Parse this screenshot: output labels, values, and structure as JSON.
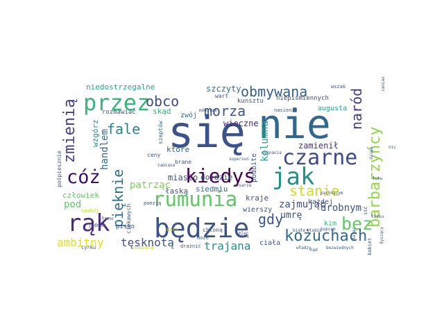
{
  "words": [
    {
      "t": "się",
      "c": "#3b528b"
    },
    {
      "t": "nie",
      "c": "#31688e"
    },
    {
      "t": "będzie",
      "c": "#3b528b"
    },
    {
      "t": "kiedyś",
      "c": "#440154"
    },
    {
      "t": "rumunia",
      "c": "#5ec962"
    },
    {
      "t": "przez",
      "c": "#35b779"
    },
    {
      "t": "czarne",
      "c": "#3e4a89"
    },
    {
      "t": "jak",
      "c": "#21918c"
    },
    {
      "t": "rąk",
      "c": "#472d7b"
    },
    {
      "t": "bez",
      "c": "#5ec962"
    },
    {
      "t": "cóż",
      "c": "#3b0f70"
    },
    {
      "t": "kożuchach",
      "c": "#31688e"
    },
    {
      "t": "obmywana",
      "c": "#355f8d"
    },
    {
      "t": "barbarzyńcy",
      "c": "#8fd744"
    },
    {
      "t": "naród",
      "c": "#443983"
    },
    {
      "t": "zmienią",
      "c": "#433e85"
    },
    {
      "t": "morza",
      "c": "#3b528b"
    },
    {
      "t": "obco",
      "c": "#3e4989"
    },
    {
      "t": "fale",
      "c": "#26828e"
    },
    {
      "t": "pięknie",
      "c": "#2c728e"
    },
    {
      "t": "stanie",
      "c": "#c8e020"
    },
    {
      "t": "gdy",
      "c": "#3b528b"
    },
    {
      "t": "ambitny",
      "c": "#dde318"
    },
    {
      "t": "tęsknotą",
      "c": "#3b528b"
    },
    {
      "t": "trajana",
      "c": "#21918c"
    },
    {
      "t": "handlem",
      "c": "#31688e"
    },
    {
      "t": "kolumna",
      "c": "#21a585"
    },
    {
      "t": "drobnym",
      "c": "#3b528b"
    },
    {
      "t": "patrząc",
      "c": "#7ad151"
    },
    {
      "t": "pod",
      "c": "#5ec962"
    },
    {
      "t": "zajmując",
      "c": "#3e4a89"
    },
    {
      "t": "umrę",
      "c": "#3b528b"
    },
    {
      "t": "zamienił",
      "c": "#472d7b"
    },
    {
      "t": "szczyty",
      "c": "#2e6e8e"
    },
    {
      "t": "niedostrzegalne",
      "c": "#22a884"
    },
    {
      "t": "wieczne",
      "c": "#482878"
    },
    {
      "t": "skąd",
      "c": "#35b779"
    },
    {
      "t": "rozmawiać",
      "c": "#3b528b"
    },
    {
      "t": "kunsztu",
      "c": "#3b528b"
    },
    {
      "t": "zwój",
      "c": "#31688e"
    },
    {
      "t": "wzgórz",
      "c": "#21918c"
    },
    {
      "t": "które",
      "c": "#31688e"
    },
    {
      "t": "miasto",
      "c": "#3b528b"
    },
    {
      "t": "dojdzie",
      "c": "#3b528b"
    },
    {
      "t": "podbite",
      "c": "#3b528b"
    },
    {
      "t": "siedmiu",
      "c": "#31688e"
    },
    {
      "t": "łaską",
      "c": "#3b528b"
    },
    {
      "t": "człowiek",
      "c": "#5ec962"
    },
    {
      "t": "kraje",
      "c": "#3b528b"
    },
    {
      "t": "wierszy",
      "c": "#3b528b"
    },
    {
      "t": "każdej",
      "c": "#3b528b"
    },
    {
      "t": "kim",
      "c": "#35b779"
    },
    {
      "t": "augusta",
      "c": "#20a386"
    },
    {
      "t": "ciała",
      "c": "#3b528b"
    },
    {
      "t": "ciekawych",
      "c": "#3b528b"
    },
    {
      "t": "szeptów",
      "c": "#31688e"
    },
    {
      "t": "ceny",
      "c": "#3b528b"
    },
    {
      "t": "brane",
      "c": "#3b528b"
    },
    {
      "t": "pośpiesznie",
      "c": "#3b528b"
    },
    {
      "t": "pismo",
      "c": "#3b528b"
    },
    {
      "t": "jednak",
      "c": "#3b528b"
    },
    {
      "t": "tłumu",
      "c": "#3b528b"
    },
    {
      "t": "spokój",
      "c": "#b5de2b"
    },
    {
      "t": "cyrku",
      "c": "#3b528b"
    },
    {
      "t": "poezją",
      "c": "#3b528b"
    },
    {
      "t": "zamiana",
      "c": "#3b528b"
    },
    {
      "t": "dała",
      "c": "#c8e020"
    },
    {
      "t": "chłoną",
      "c": "#3b528b"
    },
    {
      "t": "może",
      "c": "#3b528b"
    },
    {
      "t": "drażnić",
      "c": "#3b528b"
    },
    {
      "t": "odbiera",
      "c": "#c8e020"
    },
    {
      "t": "mówiłem",
      "c": "#3b528b"
    },
    {
      "t": "wart",
      "c": "#3b528b"
    },
    {
      "t": "niepiśmiennych",
      "c": "#3e4a89"
    },
    {
      "t": "nasienie",
      "c": "#3b528b"
    },
    {
      "t": "wszak",
      "c": "#3b528b"
    },
    {
      "t": "zamian",
      "c": "#3b528b"
    },
    {
      "t": "mygnania",
      "c": "#3b528b"
    },
    {
      "t": "łuku",
      "c": "#3b528b"
    },
    {
      "t": "nic",
      "c": "#3b528b"
    },
    {
      "t": "dzień",
      "c": "#3b528b"
    },
    {
      "t": "supersun",
      "c": "#3b528b"
    },
    {
      "t": "cesarza",
      "c": "#3b528b"
    },
    {
      "t": "pachnącym",
      "c": "#3b528b"
    },
    {
      "t": "iść",
      "c": "#3b528b"
    },
    {
      "t": "łóżku",
      "c": "#3b528b"
    },
    {
      "t": "kupcom",
      "c": "#3b528b"
    },
    {
      "t": "białe",
      "c": "#3b528b"
    },
    {
      "t": "władza",
      "c": "#3b528b"
    },
    {
      "t": "władzy",
      "c": "#3b528b"
    },
    {
      "t": "nad",
      "c": "#3b528b"
    },
    {
      "t": "owcą",
      "c": "#3b528b"
    },
    {
      "t": "bezwiednych",
      "c": "#3b528b"
    },
    {
      "t": "kobiet",
      "c": "#3b528b"
    },
    {
      "t": "dając",
      "c": "#3b528b"
    },
    {
      "t": "dyszący",
      "c": "#3b528b"
    },
    {
      "t": "mlec",
      "c": "#3b528b"
    }
  ]
}
